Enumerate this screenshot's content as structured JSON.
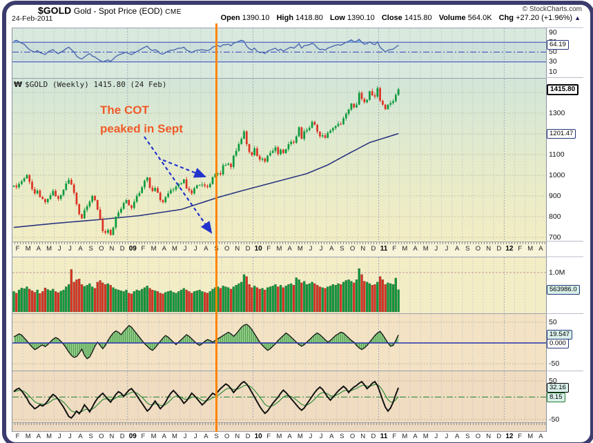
{
  "header": {
    "symbol": "$GOLD",
    "name": "Gold - Spot Price (EOD)",
    "exchange": "CME",
    "date": "24-Feb-2011",
    "copyright": "© StockCharts.com",
    "quote": {
      "open_label": "Open",
      "open": "1390.10",
      "high_label": "High",
      "high": "1418.80",
      "low_label": "Low",
      "low": "1390.10",
      "close_label": "Close",
      "close": "1415.80",
      "volume_label": "Volume",
      "volume": "564.0K",
      "chg_label": "Chg",
      "chg": "+27.20 (+1.96%)",
      "arrow_up": "▲"
    }
  },
  "watermark_icon": "₩",
  "main_label": "$GOLD (Weekly) 1415.80 (24 Feb)",
  "annotation": {
    "line1": "The COT",
    "line2": "peaked in Sept"
  },
  "axis": {
    "months": [
      "F",
      "M",
      "A",
      "M",
      "J",
      "J",
      "A",
      "S",
      "O",
      "N",
      "D",
      "09",
      "F",
      "M",
      "A",
      "M",
      "J",
      "J",
      "A",
      "S",
      "O",
      "N",
      "D",
      "10",
      "F",
      "M",
      "A",
      "M",
      "J",
      "J",
      "A",
      "S",
      "O",
      "N",
      "D",
      "11",
      "F",
      "M",
      "A",
      "M",
      "J",
      "J",
      "A",
      "S",
      "O",
      "N",
      "D",
      "12",
      "F",
      "M",
      "A"
    ],
    "range": "Feb 2008 - Apr 2012",
    "data_ends": "24 Feb 2011",
    "event_line_at": "Sep 2009"
  },
  "colors": {
    "frame": "#3c3b6d",
    "event_line": "#ff8400",
    "annotation": "#f05a28",
    "candle_up": "#0b9a3c",
    "candle_down": "#dc3222",
    "rsi_line": "#4b66b0",
    "ma_line": "#2a3580",
    "osc_fill": "#8fc983",
    "stoch_line": "#111111",
    "stoch_signal": "#2e8b3a"
  },
  "chart_data": [
    {
      "type": "line",
      "name": "rsi",
      "ylim": [
        0,
        100
      ],
      "ticks": [
        [
          "90",
          90
        ],
        [
          "70",
          70
        ],
        [
          "50",
          50
        ],
        [
          "30",
          30
        ],
        [
          "10",
          10
        ]
      ],
      "gridlines": [
        70,
        50,
        30
      ],
      "last_label": "64.19",
      "values": [
        72,
        74,
        71,
        68,
        66,
        60,
        55,
        52,
        50,
        53,
        49,
        47,
        45,
        50,
        53,
        55,
        50,
        47,
        50,
        53,
        57,
        60,
        55,
        50,
        42,
        38,
        36,
        40,
        44,
        47,
        42,
        40,
        36,
        33,
        30,
        32,
        34,
        31,
        36,
        41,
        44,
        46,
        48,
        50,
        47,
        45,
        48,
        51,
        54,
        57,
        60,
        62,
        56,
        53,
        55,
        52,
        47,
        46,
        49,
        52,
        54,
        54,
        56,
        58,
        58,
        60,
        54,
        52,
        49,
        52,
        54,
        54,
        55,
        54,
        53,
        55,
        60,
        62,
        63,
        61,
        65,
        65,
        66,
        63,
        68,
        70,
        72,
        74,
        72,
        62,
        57,
        54,
        58,
        52,
        49,
        50,
        47,
        52,
        54,
        56,
        58,
        53,
        56,
        52,
        55,
        58,
        60,
        58,
        62,
        67,
        58,
        63,
        64,
        65,
        68,
        65,
        59,
        55,
        56,
        54,
        58,
        60,
        62,
        64,
        65,
        64,
        67,
        70,
        72,
        75,
        71,
        72,
        76,
        70,
        66,
        67,
        71,
        67,
        65,
        71,
        60,
        55,
        50,
        54,
        55,
        56,
        60,
        64.19
      ]
    },
    {
      "type": "candlestick",
      "name": "price-weekly",
      "ylim": [
        690,
        1435
      ],
      "ticks": [
        [
          "1400",
          1400
        ],
        [
          "1300",
          1300
        ],
        [
          "1200",
          1200
        ],
        [
          "1100",
          1100
        ],
        [
          "1000",
          1000
        ],
        [
          "900",
          900
        ],
        [
          "800",
          800
        ],
        [
          "700",
          700
        ]
      ],
      "gridlines": [
        1400,
        1300,
        1200,
        1100,
        1000,
        900,
        800,
        700
      ],
      "last_label": "1415.80",
      "ma_label": "1201.47",
      "closes": [
        950,
        942,
        958,
        971,
        985,
        1002,
        968,
        933,
        912,
        926,
        895,
        885,
        870,
        886,
        903,
        925,
        899,
        886,
        904,
        930,
        960,
        978,
        955,
        915,
        860,
        812,
        792,
        832,
        850,
        872,
        900,
        880,
        834,
        787,
        730,
        722,
        736,
        712,
        748,
        800,
        820,
        838,
        866,
        880,
        855,
        842,
        872,
        900,
        914,
        942,
        974,
        989,
        940,
        924,
        938,
        916,
        880,
        870,
        895,
        912,
        928,
        931,
        945,
        958,
        962,
        980,
        936,
        927,
        912,
        938,
        951,
        953,
        955,
        948,
        943,
        958,
        990,
        1006,
        1010,
        1004,
        1048,
        1050,
        1056,
        1040,
        1095,
        1118,
        1151,
        1176,
        1212,
        1150,
        1112,
        1097,
        1130,
        1093,
        1076,
        1081,
        1066,
        1095,
        1108,
        1118,
        1135,
        1102,
        1124,
        1107,
        1126,
        1150,
        1162,
        1157,
        1188,
        1232,
        1176,
        1212,
        1218,
        1230,
        1258,
        1244,
        1211,
        1188,
        1193,
        1181,
        1205,
        1216,
        1228,
        1238,
        1248,
        1246,
        1275,
        1297,
        1317,
        1346,
        1328,
        1341,
        1398,
        1369,
        1353,
        1364,
        1406,
        1386,
        1380,
        1421,
        1360,
        1341,
        1319,
        1341,
        1349,
        1358,
        1388,
        1415.8
      ],
      "ma_keypoints": [
        [
          0,
          748
        ],
        [
          16,
          768
        ],
        [
          32,
          785
        ],
        [
          48,
          805
        ],
        [
          64,
          835
        ],
        [
          78,
          893
        ],
        [
          88,
          928
        ],
        [
          100,
          968
        ],
        [
          112,
          1008
        ],
        [
          120,
          1050
        ],
        [
          128,
          1105
        ],
        [
          136,
          1158
        ],
        [
          147,
          1201.47
        ]
      ]
    },
    {
      "type": "bar",
      "name": "volume",
      "ylim_k": [
        0,
        1440
      ],
      "ticks": [
        [
          "1.0M",
          1000
        ]
      ],
      "last_label": "563986.0",
      "values_k": [
        520,
        480,
        560,
        610,
        590,
        640,
        580,
        540,
        500,
        560,
        470,
        520,
        610,
        570,
        540,
        580,
        520,
        490,
        530,
        560,
        640,
        700,
        1080,
        760,
        820,
        840,
        700,
        650,
        680,
        720,
        640,
        600,
        760,
        800,
        740,
        700,
        720,
        680,
        620,
        580,
        560,
        540,
        520,
        560,
        480,
        460,
        520,
        560,
        540,
        580,
        620,
        660,
        600,
        560,
        540,
        520,
        480,
        460,
        500,
        520,
        540,
        500,
        480,
        520,
        560,
        600,
        560,
        520,
        480,
        520,
        540,
        560,
        520,
        500,
        480,
        520,
        580,
        620,
        640,
        600,
        660,
        640,
        620,
        580,
        640,
        680,
        720,
        760,
        950,
        900,
        700,
        620,
        660,
        620,
        580,
        600,
        560,
        620,
        640,
        660,
        700,
        640,
        680,
        620,
        660,
        700,
        720,
        680,
        870,
        820,
        740,
        780,
        700,
        720,
        760,
        720,
        680,
        640,
        620,
        600,
        640,
        660,
        700,
        680,
        720,
        700,
        760,
        800,
        820,
        780,
        740,
        820,
        1100,
        950,
        780,
        760,
        720,
        680,
        700,
        760,
        900,
        820,
        700,
        740,
        720,
        700,
        860,
        564
      ]
    },
    {
      "type": "area",
      "name": "oscillator",
      "ylim": [
        -70,
        70
      ],
      "ticks": [
        [
          "50",
          50
        ],
        [
          "-50",
          -50
        ]
      ],
      "last_label": "19.547",
      "zero_label": "0.000",
      "values": [
        15,
        18,
        22,
        19,
        12,
        5,
        -3,
        -10,
        -16,
        -13,
        -8,
        -5,
        -9,
        -4,
        3,
        9,
        13,
        10,
        4,
        -3,
        -12,
        -22,
        -30,
        -35,
        -33,
        -25,
        -15,
        -30,
        -38,
        -34,
        -22,
        -8,
        2,
        -6,
        -14,
        -6,
        6,
        16,
        24,
        29,
        26,
        20,
        28,
        35,
        42,
        38,
        30,
        22,
        14,
        6,
        -2,
        -8,
        -14,
        -18,
        -12,
        -4,
        4,
        12,
        18,
        14,
        8,
        2,
        -4,
        2,
        8,
        14,
        20,
        16,
        10,
        4,
        -2,
        -6,
        -2,
        4,
        8,
        6,
        2,
        6,
        10,
        14,
        18,
        22,
        26,
        22,
        16,
        22,
        30,
        38,
        43,
        45,
        40,
        32,
        22,
        12,
        2,
        -6,
        -12,
        -18,
        -14,
        -8,
        -2,
        6,
        12,
        18,
        24,
        20,
        14,
        8,
        2,
        -4,
        -8,
        -4,
        2,
        8,
        14,
        20,
        24,
        20,
        14,
        8,
        2,
        6,
        12,
        18,
        22,
        26,
        24,
        18,
        12,
        6,
        2,
        -6,
        -12,
        -16,
        -12,
        -6,
        2,
        10,
        18,
        24,
        28,
        20,
        10,
        0,
        -8,
        -6,
        6,
        19.547
      ]
    },
    {
      "type": "line",
      "name": "stochastic",
      "ylim": [
        -75,
        66
      ],
      "ticks": [
        [
          "50",
          50
        ],
        [
          "-50",
          -50
        ]
      ],
      "last_label": "32.16",
      "signal_label": "8.15",
      "signal_level": 8.15,
      "values": [
        22,
        28,
        31,
        24,
        15,
        5,
        -8,
        -15,
        -22,
        -18,
        -12,
        -15,
        -10,
        -2,
        8,
        15,
        10,
        2,
        -8,
        -18,
        -30,
        -42,
        -46,
        -38,
        -28,
        -35,
        -25,
        -12,
        -20,
        -30,
        -18,
        -5,
        5,
        12,
        18,
        10,
        2,
        -5,
        5,
        15,
        22,
        18,
        10,
        18,
        26,
        30,
        22,
        12,
        2,
        -8,
        -18,
        -28,
        -22,
        -12,
        -2,
        -12,
        -22,
        -15,
        -5,
        8,
        18,
        25,
        18,
        10,
        2,
        -8,
        -2,
        8,
        18,
        12,
        4,
        -4,
        -12,
        -6,
        2,
        10,
        18,
        14,
        22,
        30,
        36,
        42,
        38,
        30,
        20,
        28,
        36,
        44,
        48,
        42,
        32,
        20,
        8,
        -4,
        -16,
        -26,
        -34,
        -28,
        -18,
        -8,
        0,
        8,
        18,
        26,
        20,
        12,
        4,
        -4,
        -12,
        -20,
        -26,
        -20,
        -10,
        0,
        10,
        20,
        28,
        34,
        28,
        18,
        8,
        0,
        8,
        16,
        24,
        30,
        36,
        30,
        20,
        28,
        34,
        38,
        44,
        48,
        40,
        30,
        36,
        44,
        48,
        38,
        20,
        0,
        -18,
        -28,
        -20,
        -5,
        15,
        32.16
      ]
    }
  ]
}
